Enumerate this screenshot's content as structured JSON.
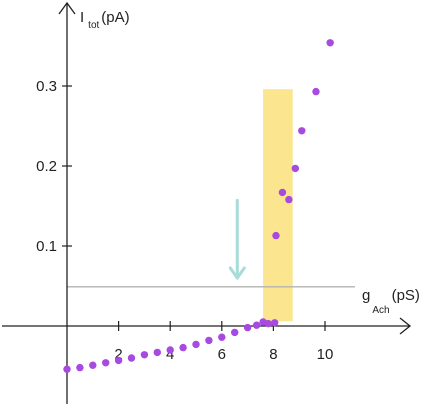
{
  "chart_data": {
    "type": "scatter",
    "title": "",
    "xlabel": {
      "main": "g",
      "sub": "Ach",
      "unit": "(pS)"
    },
    "ylabel": {
      "main": "I",
      "sub": "tot",
      "unit": "(pA)"
    },
    "xlim": [
      -0.2,
      13.2
    ],
    "ylim": [
      -0.1,
      0.4
    ],
    "xticks": [
      "2",
      "4",
      "6",
      "8",
      "10"
    ],
    "xtick_values": [
      2,
      4,
      6,
      8,
      10
    ],
    "yticks": [
      "0.1",
      "0.2",
      "0.3"
    ],
    "ytick_values": [
      0.1,
      0.2,
      0.3
    ],
    "grid": false,
    "legend": "none",
    "series": [
      {
        "color": "#a74ae0",
        "points": [
          [
            0,
            -0.054
          ],
          [
            0.5,
            -0.052
          ],
          [
            1,
            -0.049
          ],
          [
            1.5,
            -0.046
          ],
          [
            2,
            -0.043
          ],
          [
            2.5,
            -0.04
          ],
          [
            3,
            -0.036
          ],
          [
            3.5,
            -0.033
          ],
          [
            4,
            -0.03
          ],
          [
            4.5,
            -0.027
          ],
          [
            5,
            -0.023
          ],
          [
            5.5,
            -0.018
          ],
          [
            6,
            -0.014
          ],
          [
            6.5,
            -0.008
          ],
          [
            7,
            -0.002
          ],
          [
            7.35,
            0.001
          ],
          [
            7.6,
            0.005
          ],
          [
            7.8,
            0.003
          ],
          [
            8.05,
            0.004
          ],
          [
            8.1,
            0.113
          ],
          [
            8.35,
            0.167
          ],
          [
            8.6,
            0.158
          ],
          [
            8.85,
            0.197
          ],
          [
            9.1,
            0.244
          ],
          [
            9.65,
            0.293
          ],
          [
            10.2,
            0.354
          ]
        ]
      }
    ],
    "horizontal_line": {
      "y": 0.049,
      "color": "#b3b3b3"
    },
    "highlight_band": {
      "x": [
        7.6,
        8.75
      ],
      "y": [
        0.006,
        0.296
      ],
      "color": "#fbe58f"
    },
    "arrow": {
      "x": 6.6,
      "y_from": 0.157,
      "y_to": 0.06,
      "direction": "down",
      "color": "#a8dcd8"
    }
  }
}
